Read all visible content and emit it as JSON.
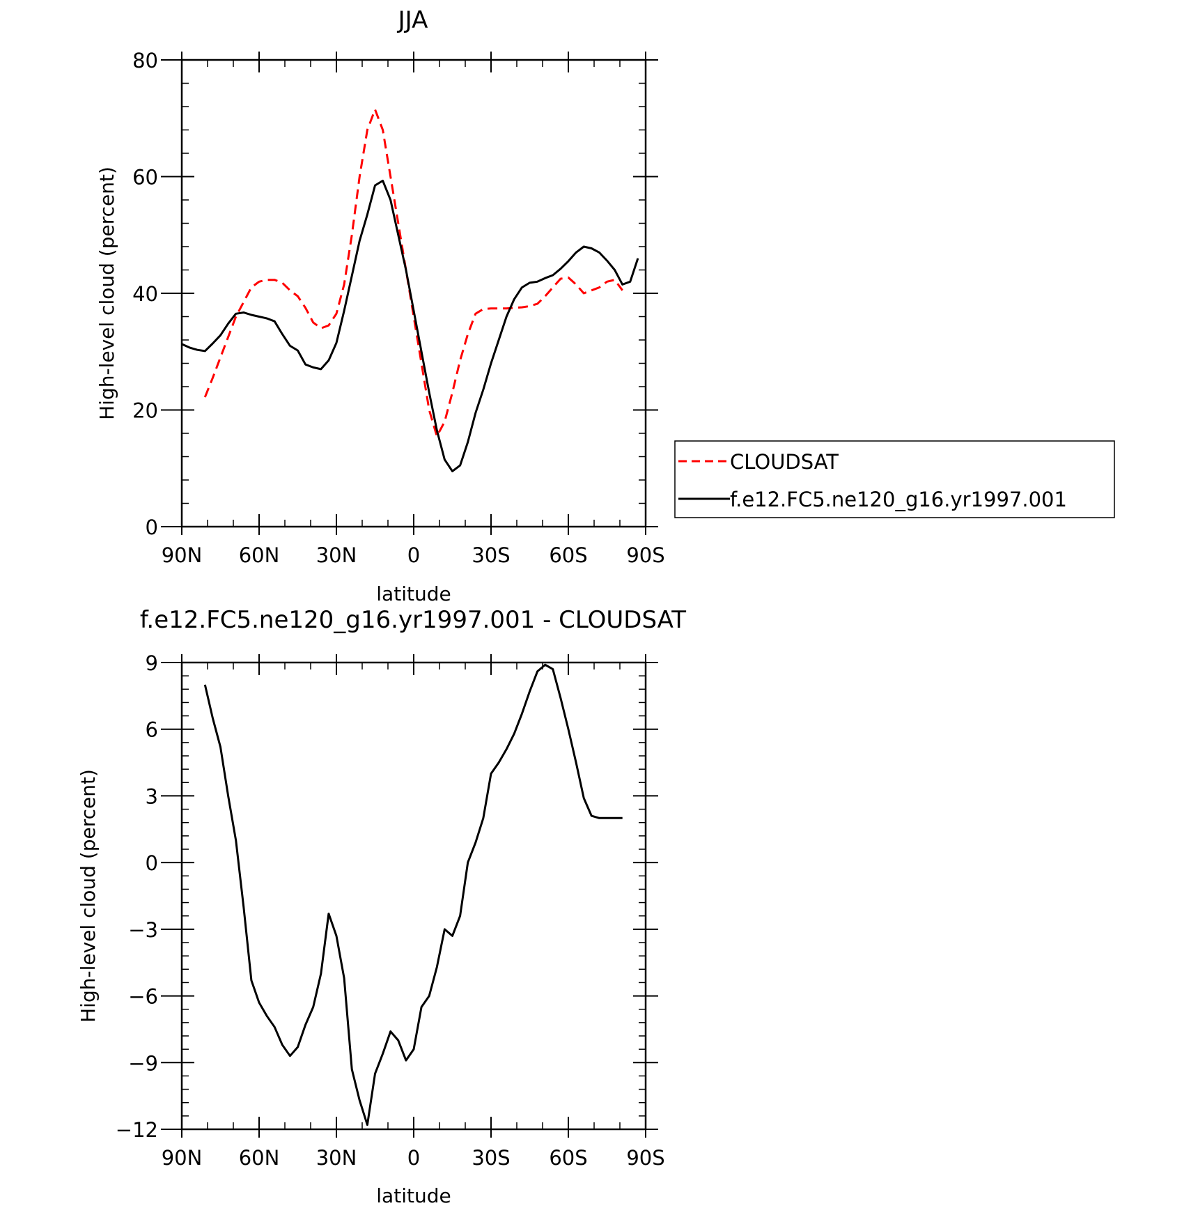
{
  "chart_data": [
    {
      "type": "line",
      "title": "JJA",
      "xlabel": "latitude",
      "ylabel": "High-level cloud (percent)",
      "xlim": [
        90,
        -90
      ],
      "ylim": [
        0,
        80
      ],
      "x_ticks": [
        90,
        60,
        30,
        0,
        -30,
        -60,
        -90
      ],
      "x_tick_labels": [
        "90N",
        "60N",
        "30N",
        "0",
        "30S",
        "60S",
        "90S"
      ],
      "y_ticks": [
        0,
        20,
        40,
        60,
        80
      ],
      "y_tick_labels": [
        "0",
        "20",
        "40",
        "60",
        "80"
      ],
      "grid": false,
      "legend_position": "right",
      "series": [
        {
          "name": "CLOUDSAT",
          "color": "#ff0000",
          "dash": "dashed",
          "x": [
            81,
            78,
            75,
            72,
            69,
            66,
            63,
            60,
            57,
            54,
            51,
            48,
            45,
            42,
            39,
            36,
            33,
            30,
            27,
            24,
            21,
            18,
            15,
            12,
            9,
            6,
            3,
            0,
            -3,
            -6,
            -9,
            -12,
            -15,
            -18,
            -21,
            -24,
            -27,
            -30,
            -33,
            -36,
            -39,
            -42,
            -45,
            -48,
            -51,
            -54,
            -57,
            -60,
            -63,
            -66,
            -69,
            -72,
            -75,
            -78,
            -81
          ],
          "y": [
            22.2,
            25.5,
            29.0,
            32.5,
            36.0,
            38.5,
            41.0,
            42.0,
            42.3,
            42.3,
            41.8,
            40.5,
            39.5,
            37.5,
            35.0,
            34.0,
            34.5,
            36.5,
            41.5,
            50.0,
            60.0,
            68.0,
            71.5,
            68.0,
            60.0,
            52.0,
            44.0,
            36.0,
            28.0,
            20.0,
            15.5,
            18.0,
            23.0,
            28.5,
            33.0,
            36.5,
            37.3,
            37.4,
            37.4,
            37.4,
            37.5,
            37.6,
            37.8,
            38.2,
            39.5,
            41.0,
            42.5,
            42.7,
            41.5,
            40.0,
            40.5,
            41.0,
            42.0,
            42.3,
            40.5
          ]
        },
        {
          "name": "f.e12.FC5.ne120_g16.yr1997.001",
          "color": "#000000",
          "dash": "solid",
          "x": [
            90,
            87,
            84,
            81,
            78,
            75,
            72,
            69,
            66,
            63,
            60,
            57,
            54,
            51,
            48,
            45,
            42,
            39,
            36,
            33,
            30,
            27,
            24,
            21,
            18,
            15,
            12,
            9,
            6,
            3,
            0,
            -3,
            -6,
            -9,
            -12,
            -15,
            -18,
            -21,
            -24,
            -27,
            -30,
            -33,
            -36,
            -39,
            -42,
            -45,
            -48,
            -51,
            -54,
            -57,
            -60,
            -63,
            -66,
            -69,
            -72,
            -75,
            -78,
            -81,
            -84,
            -87
          ],
          "y": [
            31.3,
            30.7,
            30.3,
            30.1,
            31.4,
            32.8,
            34.8,
            36.5,
            36.7,
            36.3,
            36.0,
            35.7,
            35.2,
            33.0,
            31.0,
            30.2,
            27.8,
            27.3,
            27.0,
            28.5,
            31.5,
            37.0,
            43.0,
            49.0,
            53.5,
            58.5,
            59.3,
            56.0,
            50.0,
            44.0,
            37.0,
            30.0,
            23.0,
            16.5,
            11.5,
            9.5,
            10.5,
            14.5,
            19.5,
            23.5,
            28.0,
            32.0,
            36.0,
            39.0,
            41.0,
            41.8,
            42.0,
            42.6,
            43.1,
            44.2,
            45.5,
            47.0,
            48.0,
            47.7,
            47.0,
            45.6,
            44.0,
            41.5,
            42.0,
            46.0
          ]
        }
      ]
    },
    {
      "type": "line",
      "title": "f.e12.FC5.ne120_g16.yr1997.001 - CLOUDSAT",
      "xlabel": "latitude",
      "ylabel": "High-level cloud (percent)",
      "xlim": [
        90,
        -90
      ],
      "ylim": [
        -12,
        9
      ],
      "x_ticks": [
        90,
        60,
        30,
        0,
        -30,
        -60,
        -90
      ],
      "x_tick_labels": [
        "90N",
        "60N",
        "30N",
        "0",
        "30S",
        "60S",
        "90S"
      ],
      "y_ticks": [
        -12,
        -9,
        -6,
        -3,
        0,
        3,
        6,
        9
      ],
      "y_tick_labels": [
        "−12",
        "−9",
        "−6",
        "−3",
        "0",
        "3",
        "6",
        "9"
      ],
      "grid": false,
      "series": [
        {
          "color": "#000000",
          "dash": "solid",
          "x": [
            81,
            78,
            75,
            72,
            69,
            66,
            63,
            60,
            57,
            54,
            51,
            48,
            45,
            42,
            39,
            36,
            33,
            30,
            27,
            24,
            21,
            18,
            15,
            12,
            9,
            6,
            3,
            0,
            -3,
            -6,
            -9,
            -12,
            -15,
            -18,
            -21,
            -24,
            -27,
            -30,
            -33,
            -36,
            -39,
            -42,
            -45,
            -48,
            -51,
            -54,
            -57,
            -60,
            -63,
            -66,
            -69,
            -72,
            -75,
            -78,
            -81
          ],
          "y": [
            8.0,
            6.5,
            5.2,
            3.0,
            1.0,
            -2.0,
            -5.3,
            -6.3,
            -6.9,
            -7.4,
            -8.2,
            -8.7,
            -8.3,
            -7.3,
            -6.5,
            -5.0,
            -2.3,
            -3.3,
            -5.2,
            -9.3,
            -10.7,
            -11.8,
            -9.5,
            -8.6,
            -7.6,
            -8.0,
            -8.9,
            -8.4,
            -6.5,
            -6.0,
            -4.7,
            -3.0,
            -3.3,
            -2.4,
            0.0,
            0.9,
            2.0,
            4.0,
            4.5,
            5.1,
            5.8,
            6.7,
            7.7,
            8.6,
            8.9,
            8.7,
            7.4,
            6.0,
            4.5,
            2.9,
            2.1,
            2.0,
            2.0,
            2.0,
            2.0
          ]
        }
      ]
    }
  ]
}
